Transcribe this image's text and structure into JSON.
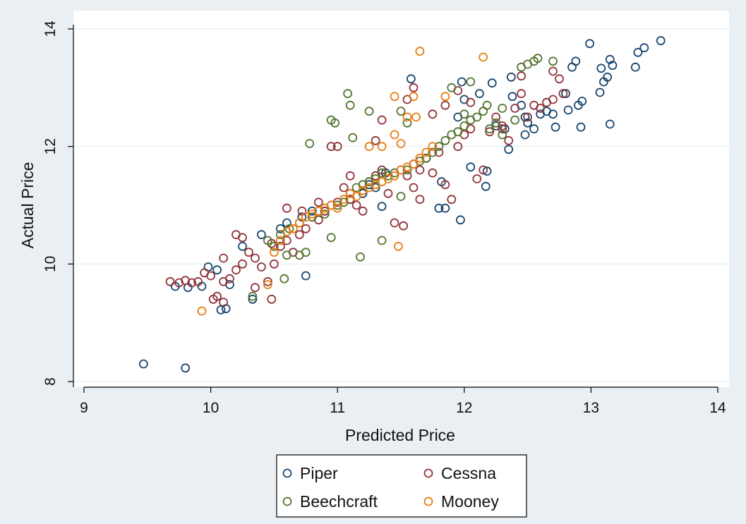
{
  "chart_data": {
    "type": "scatter",
    "xlabel": "Predicted Price",
    "ylabel": "Actual Price",
    "xlim": [
      9,
      14
    ],
    "ylim": [
      8,
      14
    ],
    "xticks": [
      9,
      10,
      11,
      12,
      13,
      14
    ],
    "yticks": [
      8,
      10,
      12,
      14
    ],
    "grid": true,
    "legend_position": "bottom",
    "series": [
      {
        "name": "Piper",
        "color": "#1a476f",
        "points": [
          [
            9.47,
            8.3
          ],
          [
            9.8,
            8.23
          ],
          [
            9.72,
            9.62
          ],
          [
            9.82,
            9.6
          ],
          [
            9.93,
            9.62
          ],
          [
            10.08,
            9.22
          ],
          [
            10.12,
            9.24
          ],
          [
            10.15,
            9.65
          ],
          [
            9.98,
            9.95
          ],
          [
            10.05,
            9.9
          ],
          [
            10.25,
            10.3
          ],
          [
            10.4,
            10.5
          ],
          [
            10.55,
            10.6
          ],
          [
            10.6,
            10.7
          ],
          [
            10.72,
            10.8
          ],
          [
            10.8,
            10.9
          ],
          [
            10.33,
            9.4
          ],
          [
            10.75,
            9.8
          ],
          [
            10.9,
            10.9
          ],
          [
            11.0,
            11.0
          ],
          [
            11.1,
            11.1
          ],
          [
            11.2,
            11.2
          ],
          [
            11.3,
            11.3
          ],
          [
            11.38,
            11.55
          ],
          [
            11.5,
            11.6
          ],
          [
            11.6,
            11.7
          ],
          [
            11.7,
            11.8
          ],
          [
            11.82,
            11.4
          ],
          [
            11.8,
            10.95
          ],
          [
            11.85,
            10.95
          ],
          [
            11.97,
            10.75
          ],
          [
            12.05,
            11.65
          ],
          [
            12.17,
            11.32
          ],
          [
            12.18,
            11.58
          ],
          [
            11.95,
            12.5
          ],
          [
            12.0,
            12.8
          ],
          [
            11.98,
            13.1
          ],
          [
            12.12,
            12.9
          ],
          [
            11.58,
            13.15
          ],
          [
            12.22,
            13.08
          ],
          [
            12.32,
            12.3
          ],
          [
            12.35,
            11.95
          ],
          [
            12.38,
            12.85
          ],
          [
            12.37,
            13.18
          ],
          [
            12.45,
            12.7
          ],
          [
            12.48,
            12.2
          ],
          [
            12.5,
            12.4
          ],
          [
            12.55,
            12.3
          ],
          [
            12.6,
            12.55
          ],
          [
            12.65,
            12.6
          ],
          [
            12.7,
            12.55
          ],
          [
            12.72,
            12.33
          ],
          [
            12.8,
            12.9
          ],
          [
            12.82,
            12.62
          ],
          [
            12.85,
            13.35
          ],
          [
            12.88,
            13.45
          ],
          [
            12.9,
            12.7
          ],
          [
            12.92,
            12.33
          ],
          [
            12.93,
            12.77
          ],
          [
            12.99,
            13.75
          ],
          [
            13.07,
            12.92
          ],
          [
            13.08,
            13.33
          ],
          [
            13.1,
            13.1
          ],
          [
            13.13,
            13.18
          ],
          [
            13.15,
            13.48
          ],
          [
            13.15,
            12.38
          ],
          [
            13.17,
            13.38
          ],
          [
            13.35,
            13.35
          ],
          [
            13.37,
            13.6
          ],
          [
            13.42,
            13.68
          ],
          [
            13.55,
            13.8
          ],
          [
            12.48,
            12.5
          ],
          [
            12.25,
            12.35
          ],
          [
            11.35,
            10.98
          ],
          [
            11.25,
            11.35
          ]
        ]
      },
      {
        "name": "Cessna",
        "color": "#90353b",
        "points": [
          [
            9.68,
            9.7
          ],
          [
            9.75,
            9.68
          ],
          [
            9.8,
            9.72
          ],
          [
            9.85,
            9.68
          ],
          [
            9.9,
            9.7
          ],
          [
            9.95,
            9.85
          ],
          [
            10.0,
            9.8
          ],
          [
            10.02,
            9.4
          ],
          [
            10.05,
            9.45
          ],
          [
            10.1,
            9.35
          ],
          [
            10.1,
            9.7
          ],
          [
            10.15,
            9.75
          ],
          [
            10.2,
            9.9
          ],
          [
            10.25,
            10.0
          ],
          [
            10.3,
            10.2
          ],
          [
            10.35,
            10.1
          ],
          [
            10.4,
            9.95
          ],
          [
            10.45,
            9.7
          ],
          [
            10.48,
            9.4
          ],
          [
            10.5,
            10.0
          ],
          [
            10.55,
            10.3
          ],
          [
            10.6,
            10.4
          ],
          [
            10.65,
            10.2
          ],
          [
            10.7,
            10.5
          ],
          [
            10.72,
            10.9
          ],
          [
            10.75,
            10.6
          ],
          [
            10.8,
            10.8
          ],
          [
            10.85,
            10.75
          ],
          [
            10.9,
            10.9
          ],
          [
            10.95,
            11.0
          ],
          [
            11.0,
            11.05
          ],
          [
            11.05,
            11.3
          ],
          [
            11.1,
            11.5
          ],
          [
            11.1,
            11.1
          ],
          [
            11.15,
            11.0
          ],
          [
            11.2,
            11.25
          ],
          [
            11.25,
            11.4
          ],
          [
            11.3,
            11.5
          ],
          [
            11.35,
            11.6
          ],
          [
            11.4,
            11.2
          ],
          [
            11.45,
            10.7
          ],
          [
            11.52,
            10.65
          ],
          [
            11.55,
            11.5
          ],
          [
            11.6,
            11.3
          ],
          [
            11.65,
            11.6
          ],
          [
            11.7,
            11.8
          ],
          [
            11.75,
            11.55
          ],
          [
            11.8,
            11.9
          ],
          [
            11.85,
            11.35
          ],
          [
            11.9,
            11.1
          ],
          [
            11.95,
            12.0
          ],
          [
            12.0,
            12.2
          ],
          [
            12.05,
            12.3
          ],
          [
            12.1,
            11.45
          ],
          [
            12.15,
            11.6
          ],
          [
            12.2,
            12.25
          ],
          [
            12.25,
            12.5
          ],
          [
            12.3,
            12.3
          ],
          [
            12.35,
            12.1
          ],
          [
            12.4,
            12.65
          ],
          [
            12.45,
            12.9
          ],
          [
            12.5,
            12.5
          ],
          [
            12.55,
            12.7
          ],
          [
            12.6,
            12.65
          ],
          [
            12.65,
            12.75
          ],
          [
            12.7,
            12.8
          ],
          [
            12.75,
            13.15
          ],
          [
            12.78,
            12.9
          ],
          [
            12.7,
            13.28
          ],
          [
            12.45,
            13.2
          ],
          [
            12.3,
            12.35
          ],
          [
            11.55,
            12.8
          ],
          [
            11.6,
            13.0
          ],
          [
            11.95,
            12.95
          ],
          [
            12.05,
            12.75
          ],
          [
            11.0,
            12.0
          ],
          [
            10.95,
            12.0
          ],
          [
            11.3,
            12.1
          ],
          [
            11.35,
            12.45
          ],
          [
            11.75,
            12.55
          ],
          [
            11.85,
            12.7
          ],
          [
            10.48,
            10.35
          ],
          [
            10.2,
            10.5
          ],
          [
            10.35,
            9.6
          ],
          [
            10.6,
            10.95
          ],
          [
            10.85,
            11.05
          ],
          [
            11.65,
            11.1
          ],
          [
            11.2,
            10.9
          ],
          [
            10.25,
            10.45
          ],
          [
            10.1,
            10.1
          ]
        ]
      },
      {
        "name": "Beechcraft",
        "color": "#55752f",
        "points": [
          [
            10.33,
            9.45
          ],
          [
            10.58,
            9.75
          ],
          [
            10.6,
            10.15
          ],
          [
            10.7,
            10.15
          ],
          [
            10.75,
            10.2
          ],
          [
            10.5,
            10.3
          ],
          [
            10.45,
            10.4
          ],
          [
            10.55,
            10.5
          ],
          [
            10.62,
            10.6
          ],
          [
            10.7,
            10.7
          ],
          [
            10.8,
            10.8
          ],
          [
            10.9,
            10.85
          ],
          [
            10.95,
            10.45
          ],
          [
            11.0,
            11.0
          ],
          [
            11.05,
            11.05
          ],
          [
            11.1,
            11.2
          ],
          [
            11.15,
            11.3
          ],
          [
            11.18,
            10.12
          ],
          [
            11.2,
            11.35
          ],
          [
            11.25,
            11.4
          ],
          [
            11.3,
            11.45
          ],
          [
            11.35,
            11.55
          ],
          [
            11.35,
            10.4
          ],
          [
            11.4,
            11.5
          ],
          [
            11.45,
            11.55
          ],
          [
            11.5,
            11.15
          ],
          [
            11.55,
            11.6
          ],
          [
            11.6,
            11.7
          ],
          [
            11.65,
            11.75
          ],
          [
            11.7,
            11.8
          ],
          [
            11.75,
            11.9
          ],
          [
            11.8,
            12.0
          ],
          [
            11.85,
            12.1
          ],
          [
            11.9,
            12.2
          ],
          [
            11.95,
            12.25
          ],
          [
            12.0,
            12.35
          ],
          [
            12.05,
            12.45
          ],
          [
            12.1,
            12.5
          ],
          [
            12.15,
            12.6
          ],
          [
            12.2,
            12.3
          ],
          [
            12.25,
            12.4
          ],
          [
            12.3,
            12.2
          ],
          [
            12.4,
            12.45
          ],
          [
            12.45,
            13.35
          ],
          [
            12.5,
            13.4
          ],
          [
            12.55,
            13.45
          ],
          [
            12.58,
            13.5
          ],
          [
            12.7,
            13.45
          ],
          [
            12.3,
            12.65
          ],
          [
            12.18,
            12.7
          ],
          [
            12.05,
            13.1
          ],
          [
            11.9,
            13.0
          ],
          [
            10.78,
            12.05
          ],
          [
            10.95,
            12.45
          ],
          [
            10.98,
            12.4
          ],
          [
            11.1,
            12.7
          ],
          [
            11.08,
            12.9
          ],
          [
            11.25,
            12.6
          ],
          [
            11.12,
            12.15
          ],
          [
            11.5,
            12.6
          ],
          [
            11.55,
            12.4
          ],
          [
            12.0,
            12.55
          ]
        ]
      },
      {
        "name": "Mooney",
        "color": "#e87d13",
        "points": [
          [
            9.93,
            9.2
          ],
          [
            10.45,
            9.65
          ],
          [
            10.5,
            10.2
          ],
          [
            10.55,
            10.4
          ],
          [
            10.6,
            10.55
          ],
          [
            10.65,
            10.6
          ],
          [
            10.7,
            10.7
          ],
          [
            10.75,
            10.8
          ],
          [
            10.8,
            10.85
          ],
          [
            10.85,
            10.9
          ],
          [
            10.9,
            10.95
          ],
          [
            10.95,
            11.0
          ],
          [
            11.0,
            10.95
          ],
          [
            11.05,
            11.1
          ],
          [
            11.1,
            11.2
          ],
          [
            11.15,
            11.15
          ],
          [
            11.2,
            11.25
          ],
          [
            11.25,
            11.3
          ],
          [
            11.3,
            11.35
          ],
          [
            11.35,
            11.4
          ],
          [
            11.4,
            11.45
          ],
          [
            11.45,
            11.5
          ],
          [
            11.5,
            11.6
          ],
          [
            11.55,
            11.65
          ],
          [
            11.6,
            11.7
          ],
          [
            11.65,
            11.8
          ],
          [
            11.7,
            11.9
          ],
          [
            11.5,
            12.05
          ],
          [
            11.45,
            12.2
          ],
          [
            11.55,
            12.5
          ],
          [
            11.6,
            12.85
          ],
          [
            11.62,
            12.5
          ],
          [
            11.45,
            12.85
          ],
          [
            11.65,
            13.62
          ],
          [
            12.15,
            13.52
          ],
          [
            11.35,
            12.0
          ],
          [
            11.25,
            12.0
          ],
          [
            11.48,
            10.3
          ],
          [
            11.85,
            12.85
          ],
          [
            11.75,
            12.0
          ]
        ]
      }
    ]
  }
}
